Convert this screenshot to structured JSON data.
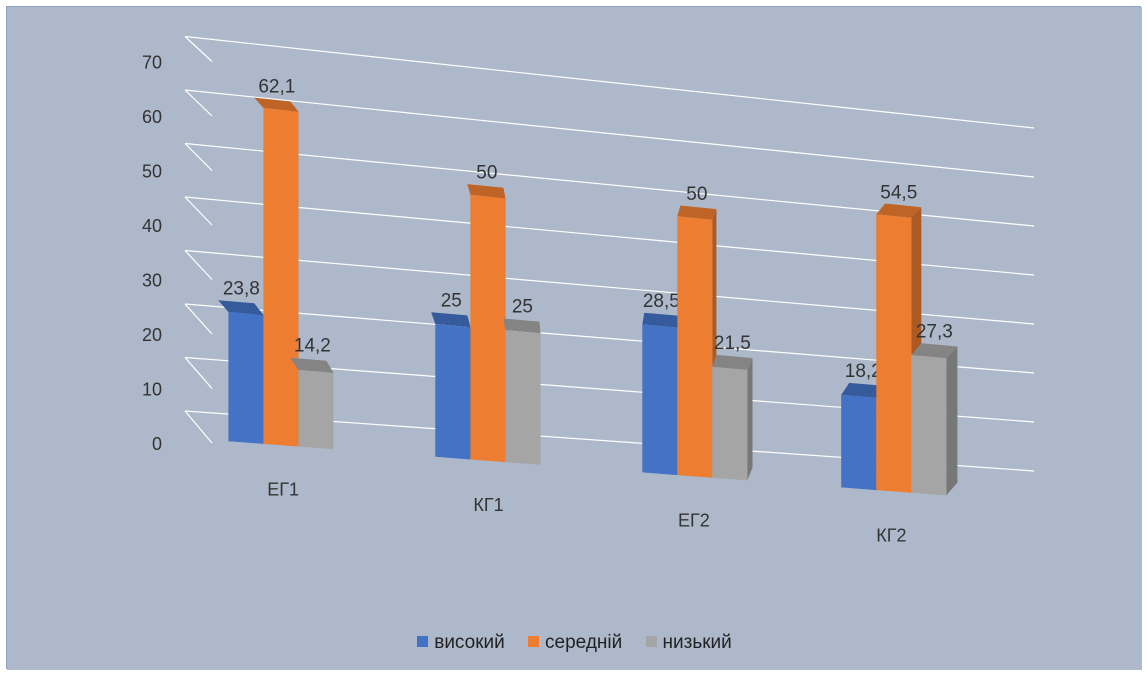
{
  "chart_data": {
    "type": "bar",
    "style": "3d-clustered-column",
    "categories": [
      "ЕГ1",
      "КГ1",
      "ЕГ2",
      "КГ2"
    ],
    "series": [
      {
        "name": "високий",
        "color": "#4472c4",
        "values": [
          23.8,
          25,
          28.5,
          18.2
        ]
      },
      {
        "name": "середній",
        "color": "#ed7d31",
        "values": [
          62.1,
          50,
          50,
          54.5
        ]
      },
      {
        "name": "низький",
        "color": "#a5a5a5",
        "values": [
          14.2,
          25,
          21.5,
          27.3
        ]
      }
    ],
    "data_labels": [
      [
        "23,8",
        "25",
        "28,5",
        "18,2"
      ],
      [
        "62,1",
        "50",
        "50",
        "54,5"
      ],
      [
        "14,2",
        "25",
        "21,5",
        "27,3"
      ]
    ],
    "y_ticks": [
      "0",
      "10",
      "20",
      "30",
      "40",
      "50",
      "60",
      "70"
    ],
    "ylim": [
      0,
      70
    ],
    "grid": true,
    "legend_position": "bottom",
    "background_color": "#adb9ca"
  }
}
